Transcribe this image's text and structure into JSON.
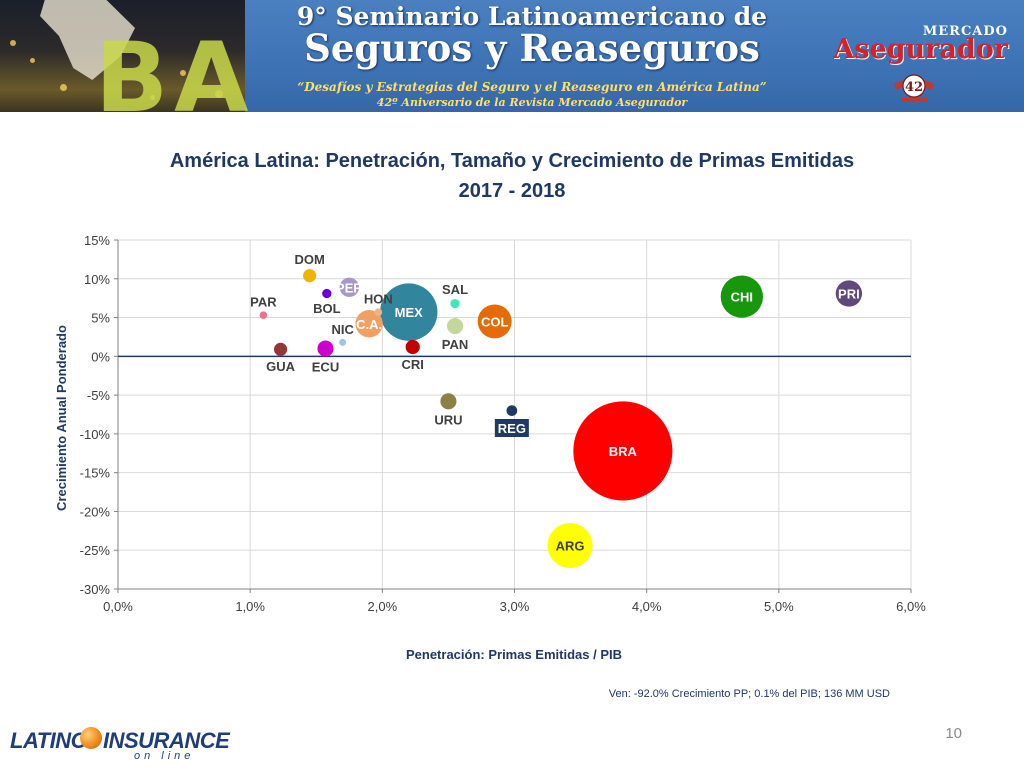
{
  "banner": {
    "title_line1": "9° Seminario Latinoamericano de",
    "title_line2": "Seguros y Reaseguros",
    "subtitle_line1": "“Desafíos y Estrategias del Seguro y el Reaseguro en América Latina”",
    "subtitle_line2": "42º Aniversario de la Revista Mercado Asegurador",
    "city_letters": "BA",
    "logo_top": "MERCADO",
    "logo_main": "Asegurador",
    "badge_number": "42",
    "colors": {
      "banner": "#3d73b5",
      "banner_text": "#ffffff",
      "subtitle": "#ffe066",
      "logo_red": "#d6202a"
    }
  },
  "chart_data": {
    "type": "scatter",
    "subtype": "bubble",
    "title_line1": "América Latina: Penetración, Tamaño y Crecimiento de Primas Emitidas",
    "title_line2": "2017 - 2018",
    "xlabel": "Penetración: Primas Emitidas / PIB",
    "ylabel": "Crecimiento Anual Ponderado",
    "xlim": [
      0,
      6
    ],
    "ylim": [
      -30,
      15
    ],
    "xticks": [
      0,
      1,
      2,
      3,
      4,
      5,
      6
    ],
    "xtick_labels": [
      "0,0%",
      "1,0%",
      "2,0%",
      "3,0%",
      "4,0%",
      "5,0%",
      "6,0%"
    ],
    "yticks": [
      15,
      10,
      5,
      0,
      -5,
      -10,
      -15,
      -20,
      -25,
      -30
    ],
    "ytick_labels": [
      "15%",
      "10%",
      "5%",
      "0%",
      "-5%",
      "-10%",
      "-15%",
      "-20%",
      "-25%",
      "-30%"
    ],
    "grid": true,
    "legend": "none",
    "points": [
      {
        "label": "DOM",
        "x": 1.45,
        "y": 10.4,
        "size": 3.0,
        "color": "#f0b400",
        "label_color": "#404040",
        "label_pos": "above"
      },
      {
        "label": "PER",
        "x": 1.75,
        "y": 8.9,
        "size": 6.5,
        "color": "#a898c8",
        "label_color": "#ffffff",
        "label_pos": "center"
      },
      {
        "label": "HON",
        "x": 1.97,
        "y": 5.7,
        "size": 1.0,
        "color": "#f4b183",
        "label_color": "#404040",
        "label_pos": "above"
      },
      {
        "label": "BOL",
        "x": 1.58,
        "y": 8.1,
        "size": 1.5,
        "color": "#6a00d8",
        "label_color": "#404040",
        "label_pos": "below"
      },
      {
        "label": "PAR",
        "x": 1.1,
        "y": 5.3,
        "size": 1.0,
        "color": "#f07090",
        "label_color": "#404040",
        "label_pos": "above"
      },
      {
        "label": "C.A.",
        "x": 1.9,
        "y": 4.2,
        "size": 13.0,
        "color": "#f0a060",
        "label_color": "#ffffff",
        "label_pos": "center"
      },
      {
        "label": "NIC",
        "x": 1.7,
        "y": 1.8,
        "size": 0.8,
        "color": "#9cc8e8",
        "label_color": "#404040",
        "label_pos": "above"
      },
      {
        "label": "MEX",
        "x": 2.2,
        "y": 5.7,
        "size": 57.0,
        "color": "#31859c",
        "label_color": "#ffffff",
        "label_pos": "center"
      },
      {
        "label": "SAL",
        "x": 2.55,
        "y": 6.8,
        "size": 1.5,
        "color": "#3fe8b4",
        "label_color": "#404040",
        "label_pos": "above"
      },
      {
        "label": "PAN",
        "x": 2.55,
        "y": 3.9,
        "size": 4.5,
        "color": "#c4d79b",
        "label_color": "#404040",
        "label_pos": "below"
      },
      {
        "label": "COL",
        "x": 2.85,
        "y": 4.5,
        "size": 20.0,
        "color": "#e36c09",
        "label_color": "#ffffff",
        "label_pos": "center"
      },
      {
        "label": "GUA",
        "x": 1.23,
        "y": 0.9,
        "size": 3.0,
        "color": "#943634",
        "label_color": "#404040",
        "label_pos": "below"
      },
      {
        "label": "ECU",
        "x": 1.57,
        "y": 1.0,
        "size": 4.5,
        "color": "#cc00cc",
        "label_color": "#404040",
        "label_pos": "below"
      },
      {
        "label": "CRI",
        "x": 2.23,
        "y": 1.2,
        "size": 3.5,
        "color": "#c00000",
        "label_color": "#404040",
        "label_pos": "below"
      },
      {
        "label": "CHI",
        "x": 4.72,
        "y": 7.7,
        "size": 31.0,
        "color": "#17960e",
        "label_color": "#ffffff",
        "label_pos": "center"
      },
      {
        "label": "PRI",
        "x": 5.53,
        "y": 8.1,
        "size": 12.0,
        "color": "#5f497a",
        "label_color": "#ffffff",
        "label_pos": "center"
      },
      {
        "label": "URU",
        "x": 2.5,
        "y": -5.8,
        "size": 4.5,
        "color": "#8c8048",
        "label_color": "#404040",
        "label_pos": "below"
      },
      {
        "label": "REG",
        "x": 2.98,
        "y": -7.0,
        "size": 2.0,
        "color": "#1f3864",
        "label_color": "#ffffff",
        "label_pos": "below-box"
      },
      {
        "label": "BRA",
        "x": 3.82,
        "y": -12.2,
        "size": 170.0,
        "color": "#ff0000",
        "label_color": "#ffffff",
        "label_pos": "center"
      },
      {
        "label": "ARG",
        "x": 3.42,
        "y": -24.4,
        "size": 35.0,
        "color": "#ffff00",
        "label_color": "#404040",
        "label_pos": "center"
      }
    ]
  },
  "note": "Ven: -92.0% Crecimiento PP; 0.1% del PIB; 136 MM USD",
  "page_number": "10",
  "footer_logo": {
    "part1": "LATINO",
    "part2": "INSURANCE",
    "part3": "on line"
  }
}
